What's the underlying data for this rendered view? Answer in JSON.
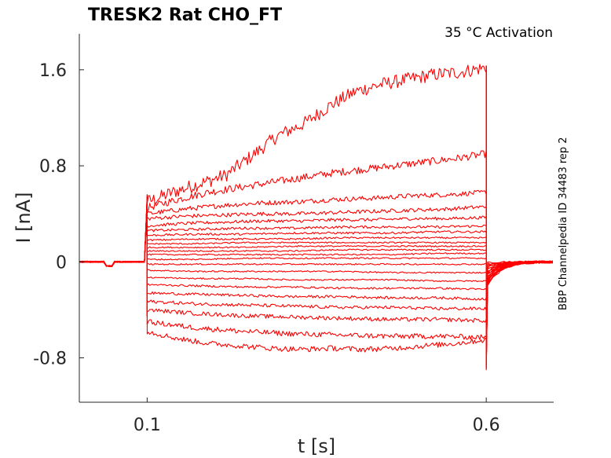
{
  "chart_data": {
    "type": "line",
    "title": "TRESK2  Rat  CHO_FT",
    "annotation": "35 °C  Activation",
    "side_label": "BBP Channelpedia ID 34483 rep 2",
    "xlabel": "t [s]",
    "ylabel": "I [nA]",
    "xlim": [
      0.0,
      0.6994
    ],
    "ylim": [
      -1.17,
      1.9
    ],
    "x_ticks": [
      0.1,
      0.6
    ],
    "x_tick_labels": [
      "0.1",
      "0.6"
    ],
    "y_ticks": [
      -0.8,
      0,
      0.8,
      1.6
    ],
    "y_tick_labels": [
      "-0.8",
      "0",
      "0.8",
      "1.6"
    ],
    "step_start": 0.1,
    "step_end": 0.6,
    "series_color": "#ff0000",
    "series": [
      {
        "values": [
          0.5,
          0.58,
          0.65,
          0.72,
          0.88,
          1.05,
          1.15,
          1.3,
          1.42,
          1.48,
          1.52,
          1.56,
          1.58,
          1.62
        ]
      },
      {
        "values": [
          0.45,
          0.52,
          0.58,
          0.62,
          0.66,
          0.7,
          0.74,
          0.77,
          0.8,
          0.83,
          0.86,
          0.9
        ]
      },
      {
        "values": [
          0.4,
          0.44,
          0.47,
          0.49,
          0.5,
          0.52,
          0.53,
          0.55,
          0.56,
          0.58
        ]
      },
      {
        "values": [
          0.36,
          0.38,
          0.39,
          0.4,
          0.4,
          0.41,
          0.42,
          0.43,
          0.44,
          0.46
        ]
      },
      {
        "values": [
          0.3,
          0.32,
          0.33,
          0.34,
          0.34,
          0.35,
          0.35,
          0.36,
          0.36,
          0.37
        ]
      },
      {
        "values": [
          0.26,
          0.27,
          0.28,
          0.28,
          0.29,
          0.29,
          0.29,
          0.3
        ]
      },
      {
        "values": [
          0.22,
          0.23,
          0.23,
          0.24,
          0.24,
          0.24,
          0.25,
          0.25
        ]
      },
      {
        "values": [
          0.18,
          0.19,
          0.19,
          0.19,
          0.2,
          0.2,
          0.2,
          0.2
        ]
      },
      {
        "values": [
          0.15,
          0.15,
          0.16,
          0.16,
          0.16,
          0.16,
          0.16,
          0.16
        ]
      },
      {
        "values": [
          0.12,
          0.12,
          0.12,
          0.13,
          0.13,
          0.13,
          0.13,
          0.13
        ]
      },
      {
        "values": [
          0.09,
          0.09,
          0.09,
          0.09,
          0.1,
          0.1,
          0.1,
          0.1
        ]
      },
      {
        "values": [
          0.06,
          0.06,
          0.06,
          0.06,
          0.06,
          0.06,
          0.07,
          0.07
        ]
      },
      {
        "values": [
          0.02,
          0.02,
          0.03,
          0.03,
          0.03,
          0.03,
          0.03,
          0.03
        ]
      },
      {
        "values": [
          -0.02,
          -0.02,
          -0.02,
          -0.02,
          -0.02,
          -0.02,
          -0.02,
          -0.02
        ]
      },
      {
        "values": [
          -0.07,
          -0.08,
          -0.08,
          -0.08,
          -0.08,
          -0.09,
          -0.09,
          -0.09
        ]
      },
      {
        "values": [
          -0.13,
          -0.14,
          -0.14,
          -0.15,
          -0.15,
          -0.15,
          -0.16,
          -0.16
        ]
      },
      {
        "values": [
          -0.19,
          -0.2,
          -0.21,
          -0.21,
          -0.22,
          -0.22,
          -0.22,
          -0.23
        ]
      },
      {
        "values": [
          -0.26,
          -0.27,
          -0.28,
          -0.29,
          -0.29,
          -0.3,
          -0.3,
          -0.31
        ]
      },
      {
        "values": [
          -0.33,
          -0.35,
          -0.36,
          -0.37,
          -0.38,
          -0.38,
          -0.39,
          -0.39
        ]
      },
      {
        "values": [
          -0.4,
          -0.43,
          -0.45,
          -0.46,
          -0.47,
          -0.48,
          -0.48,
          -0.49
        ]
      },
      {
        "values": [
          -0.5,
          -0.55,
          -0.58,
          -0.6,
          -0.61,
          -0.62,
          -0.62,
          -0.63
        ]
      },
      {
        "values": [
          -0.58,
          -0.64,
          -0.68,
          -0.7,
          -0.72,
          -0.73,
          -0.72,
          -0.73,
          -0.72,
          -0.7,
          -0.68,
          -0.65
        ]
      }
    ]
  }
}
